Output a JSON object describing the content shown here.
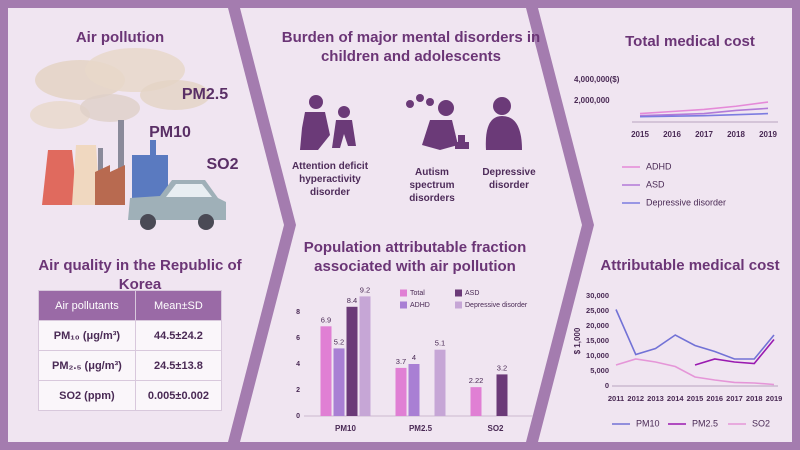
{
  "air_pollution": {
    "title": "Air pollution",
    "labels": [
      "PM2.5",
      "PM10",
      "SO2"
    ]
  },
  "air_quality": {
    "title": "Air quality in the Republic of Korea",
    "table": {
      "header": [
        "Air pollutants",
        "Mean±SD"
      ],
      "rows": [
        [
          "PM₁₀ (μg/m³)",
          "44.5±24.2"
        ],
        [
          "PM₂.₅ (μg/m³)",
          "24.5±13.8"
        ],
        [
          "SO2 (ppm)",
          "0.005±0.002"
        ]
      ]
    }
  },
  "mental_disorders": {
    "title": "Burden of major mental disorders in children and adolescents",
    "labels": [
      "Attention deficit hyperactivity disorder",
      "Autism spectrum disorders",
      "Depressive disorder"
    ]
  },
  "chart_data": [
    {
      "type": "bar",
      "title": "Population attributable fraction associated with air pollution",
      "categories": [
        "PM10",
        "PM2.5",
        "SO2"
      ],
      "series": [
        {
          "name": "Total",
          "color": "#e07fd4",
          "values": [
            6.9,
            3.7,
            2.22
          ]
        },
        {
          "name": "ADHD",
          "color": "#a97fd4",
          "values": [
            5.2,
            4,
            null
          ]
        },
        {
          "name": "ASD",
          "color": "#6b3a78",
          "values": [
            8.4,
            null,
            3.2
          ]
        },
        {
          "name": "Depressive disorder",
          "color": "#c6a6d6",
          "values": [
            9.2,
            5.1,
            null
          ]
        }
      ],
      "ylim": [
        0,
        10
      ],
      "yticks": [
        0,
        2,
        4,
        6,
        8
      ],
      "grid": false
    },
    {
      "type": "line",
      "title": "Total medical cost",
      "categories": [
        "2015",
        "2016",
        "2017",
        "2018",
        "2019"
      ],
      "series": [
        {
          "name": "ADHD",
          "color": "#e58ad8",
          "values": [
            800000,
            1000000,
            1200000,
            1500000,
            1900000
          ]
        },
        {
          "name": "ASD",
          "color": "#b27ad8",
          "values": [
            600000,
            700000,
            800000,
            1100000,
            1300000
          ]
        },
        {
          "name": "Depressive disorder",
          "color": "#7c7ce0",
          "values": [
            500000,
            550000,
            600000,
            700000,
            800000
          ]
        }
      ],
      "ylim": [
        0,
        4000000
      ],
      "yticks": [
        {
          "value": 2000000,
          "label": "2,000,000"
        },
        {
          "value": 4000000,
          "label": "4,000,000($)"
        }
      ],
      "grid": false
    },
    {
      "type": "line",
      "title": "Attributable medical cost",
      "ylabel": "$ 1,000",
      "categories": [
        "2011",
        "2012",
        "2013",
        "2014",
        "2015",
        "2016",
        "2017",
        "2018",
        "2019"
      ],
      "series": [
        {
          "name": "PM10",
          "color": "#7272d6",
          "values": [
            25500,
            10500,
            12500,
            17000,
            13500,
            11500,
            9000,
            9000,
            17000
          ]
        },
        {
          "name": "PM2.5",
          "color": "#9a1ab0",
          "values": [
            null,
            null,
            null,
            null,
            7000,
            9000,
            8000,
            7500,
            15500
          ]
        },
        {
          "name": "SO2",
          "color": "#e596d8",
          "values": [
            7000,
            9000,
            8000,
            6500,
            3000,
            2000,
            1200,
            1000,
            500
          ]
        }
      ],
      "ylim": [
        0,
        30000
      ],
      "yticks": [
        0,
        {
          "value": 5000,
          "label": "5,000"
        },
        {
          "value": 10000,
          "label": "10,000"
        },
        {
          "value": 15000,
          "label": "15,000"
        },
        {
          "value": 20000,
          "label": "20,000"
        },
        {
          "value": 25000,
          "label": "25,000"
        },
        {
          "value": 30000,
          "label": "30,000"
        }
      ],
      "grid": false
    }
  ]
}
